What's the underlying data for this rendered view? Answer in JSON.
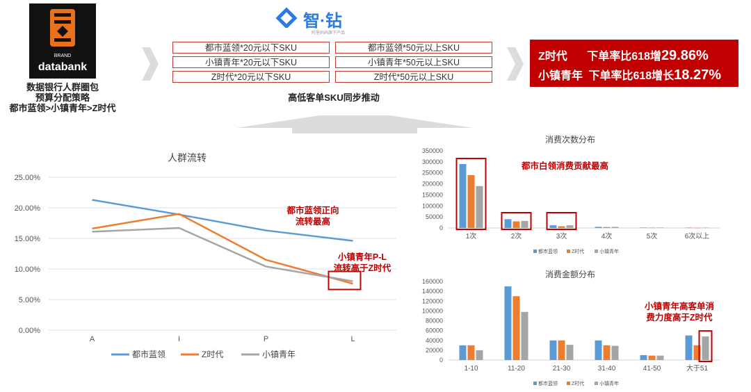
{
  "brand": {
    "small": "BRAND",
    "name": "databank",
    "letter": "B"
  },
  "zhizuan": {
    "name": "智·钻",
    "tagline": "阿里妈妈旗下产品"
  },
  "left_caption": [
    "数据银行人群圈包",
    "预算分配策略",
    "都市蓝领>小镇青年>Z时代"
  ],
  "sku_grid": [
    [
      "都市蓝领*20元以下SKU",
      "都市蓝领*50元以上SKU"
    ],
    [
      "小镇青年*20元以下SKU",
      "小镇青年*50元以上SKU"
    ],
    [
      "Z时代*20元以下SKU",
      "Z时代*50元以上SKU"
    ]
  ],
  "center_caption": "高低客单SKU同步推动",
  "result": [
    {
      "label": "Z时代",
      "text": "下单率比618增",
      "value": "29.86%"
    },
    {
      "label": "小镇青年",
      "text": "下单率比618增长",
      "value": "18.27%"
    }
  ],
  "colors": {
    "blue": "#5b9bd5",
    "orange": "#ed7d31",
    "gray": "#a5a5a5",
    "red": "#c00000"
  },
  "annotations": {
    "line1": [
      "都市蓝领正向",
      "流转最高"
    ],
    "line2": [
      "小镇青年P-L",
      "流转高于Z时代"
    ],
    "bar1": "都市白领消费贡献最高",
    "bar2": [
      "小镇青年高客单消",
      "费力度高于Z时代"
    ]
  },
  "chart_data": [
    {
      "type": "line",
      "title": "人群流转",
      "categories": [
        "A",
        "I",
        "P",
        "L"
      ],
      "ylim": [
        0,
        25
      ],
      "yticks": [
        "0.00%",
        "5.00%",
        "10.00%",
        "15.00%",
        "20.00%",
        "25.00%"
      ],
      "series": [
        {
          "name": "都市蓝领",
          "color": "#5b9bd5",
          "values": [
            21.3,
            18.9,
            16.3,
            14.6
          ]
        },
        {
          "name": "Z时代",
          "color": "#ed7d31",
          "values": [
            16.6,
            19.0,
            11.5,
            7.6
          ]
        },
        {
          "name": "小镇青年",
          "color": "#a5a5a5",
          "values": [
            16.1,
            16.7,
            10.4,
            8.0
          ]
        }
      ]
    },
    {
      "type": "bar",
      "title": "消费次数分布",
      "categories": [
        "1次",
        "2次",
        "3次",
        "4次",
        "5次",
        "6次以上"
      ],
      "ylim": [
        0,
        350000
      ],
      "yticks": [
        "0",
        "50000",
        "100000",
        "150000",
        "200000",
        "250000",
        "300000",
        "350000"
      ],
      "series": [
        {
          "name": "都市蓝领",
          "color": "#5b9bd5",
          "values": [
            290000,
            40000,
            12000,
            5000,
            2000,
            1500
          ]
        },
        {
          "name": "Z时代",
          "color": "#ed7d31",
          "values": [
            240000,
            30000,
            8000,
            4000,
            1500,
            1000
          ]
        },
        {
          "name": "小镇青年",
          "color": "#a5a5a5",
          "values": [
            190000,
            32000,
            12000,
            5000,
            2000,
            1500
          ]
        }
      ]
    },
    {
      "type": "bar",
      "title": "消费金额分布",
      "categories": [
        "1-10",
        "11-20",
        "21-30",
        "31-40",
        "41-50",
        "大于51"
      ],
      "ylim": [
        0,
        160000
      ],
      "yticks": [
        "0",
        "20000",
        "40000",
        "60000",
        "80000",
        "100000",
        "120000",
        "140000",
        "160000"
      ],
      "series": [
        {
          "name": "都市蓝领",
          "color": "#5b9bd5",
          "values": [
            30000,
            150000,
            40000,
            40000,
            10000,
            50000
          ]
        },
        {
          "name": "Z时代",
          "color": "#ed7d31",
          "values": [
            30000,
            130000,
            40000,
            30000,
            9000,
            30000
          ]
        },
        {
          "name": "小镇青年",
          "color": "#a5a5a5",
          "values": [
            20000,
            98000,
            31000,
            29000,
            9000,
            48000
          ]
        }
      ]
    }
  ]
}
